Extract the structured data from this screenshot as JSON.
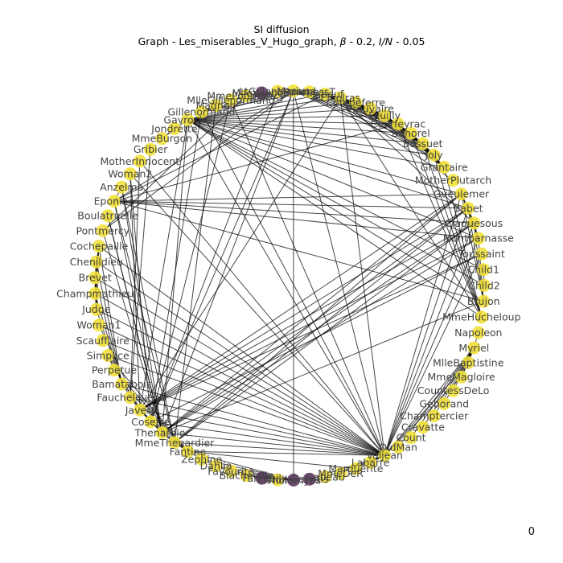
{
  "figure": {
    "title": "SI diffusion",
    "subtitle_prefix": "Graph - Les_miserables_V_Hugo_graph, ",
    "subtitle_beta_symbol": "β",
    "subtitle_beta_value": " - 0.2, ",
    "subtitle_ratio_symbol": "I/N",
    "subtitle_ratio_value": " - 0.05",
    "frame_counter": "0"
  },
  "legend_colors": {
    "susceptible": "#f2e13a",
    "infected": "#5a2e5c",
    "edge": "#000000"
  },
  "nodes": [
    {
      "id": "Napoleon",
      "state": "susceptible"
    },
    {
      "id": "Myriel",
      "state": "susceptible"
    },
    {
      "id": "MlleBaptistine",
      "state": "susceptible"
    },
    {
      "id": "MmeMagloire",
      "state": "susceptible"
    },
    {
      "id": "CountessDeLo",
      "state": "susceptible"
    },
    {
      "id": "Geborand",
      "state": "susceptible"
    },
    {
      "id": "Champtercier",
      "state": "susceptible"
    },
    {
      "id": "Cravatte",
      "state": "susceptible"
    },
    {
      "id": "Count",
      "state": "susceptible"
    },
    {
      "id": "OldMan",
      "state": "susceptible"
    },
    {
      "id": "Valjean",
      "state": "susceptible"
    },
    {
      "id": "Labarre",
      "state": "susceptible"
    },
    {
      "id": "Marguerite",
      "state": "susceptible"
    },
    {
      "id": "MmeDeR",
      "state": "susceptible"
    },
    {
      "id": "Isabeau",
      "state": "susceptible"
    },
    {
      "id": "Gervais",
      "state": "infected"
    },
    {
      "id": "Tholomyes",
      "state": "infected"
    },
    {
      "id": "Listolier",
      "state": "susceptible"
    },
    {
      "id": "Fameuil",
      "state": "infected"
    },
    {
      "id": "Blacheville",
      "state": "susceptible"
    },
    {
      "id": "Favourite",
      "state": "susceptible"
    },
    {
      "id": "Dahlia",
      "state": "susceptible"
    },
    {
      "id": "Zephine",
      "state": "susceptible"
    },
    {
      "id": "Fantine",
      "state": "susceptible"
    },
    {
      "id": "MmeThenardier",
      "state": "susceptible"
    },
    {
      "id": "Thenardier",
      "state": "susceptible"
    },
    {
      "id": "Cosette",
      "state": "susceptible"
    },
    {
      "id": "Javert",
      "state": "susceptible"
    },
    {
      "id": "Fauchelevent",
      "state": "susceptible"
    },
    {
      "id": "Bamatabois",
      "state": "susceptible"
    },
    {
      "id": "Perpetue",
      "state": "susceptible"
    },
    {
      "id": "Simplice",
      "state": "susceptible"
    },
    {
      "id": "Scaufflaire",
      "state": "susceptible"
    },
    {
      "id": "Woman1",
      "state": "susceptible"
    },
    {
      "id": "Judge",
      "state": "susceptible"
    },
    {
      "id": "Champmathieu",
      "state": "susceptible"
    },
    {
      "id": "Brevet",
      "state": "susceptible"
    },
    {
      "id": "Chenildieu",
      "state": "susceptible"
    },
    {
      "id": "Cochepaille",
      "state": "susceptible"
    },
    {
      "id": "Pontmercy",
      "state": "susceptible"
    },
    {
      "id": "Boulatruelle",
      "state": "susceptible"
    },
    {
      "id": "Eponine",
      "state": "susceptible"
    },
    {
      "id": "Anzelma",
      "state": "susceptible"
    },
    {
      "id": "Woman2",
      "state": "susceptible"
    },
    {
      "id": "MotherInnocent",
      "state": "susceptible"
    },
    {
      "id": "Gribier",
      "state": "susceptible"
    },
    {
      "id": "MmeBurgon",
      "state": "susceptible"
    },
    {
      "id": "Jondrette",
      "state": "susceptible"
    },
    {
      "id": "Gavroche",
      "state": "susceptible"
    },
    {
      "id": "Gillenormand",
      "state": "susceptible"
    },
    {
      "id": "Magnon",
      "state": "susceptible"
    },
    {
      "id": "MlleGillenormand",
      "state": "susceptible"
    },
    {
      "id": "MmePontmercy",
      "state": "susceptible"
    },
    {
      "id": "MlleVaubois",
      "state": "infected"
    },
    {
      "id": "LtGillenormand",
      "state": "susceptible"
    },
    {
      "id": "Marius",
      "state": "susceptible"
    },
    {
      "id": "BaronessT",
      "state": "susceptible"
    },
    {
      "id": "Mabeuf",
      "state": "susceptible"
    },
    {
      "id": "Enjolras",
      "state": "susceptible"
    },
    {
      "id": "Combeferre",
      "state": "susceptible"
    },
    {
      "id": "Prouvaire",
      "state": "susceptible"
    },
    {
      "id": "Feuilly",
      "state": "susceptible"
    },
    {
      "id": "Courfeyrac",
      "state": "susceptible"
    },
    {
      "id": "Bahorel",
      "state": "susceptible"
    },
    {
      "id": "Bossuet",
      "state": "susceptible"
    },
    {
      "id": "Joly",
      "state": "susceptible"
    },
    {
      "id": "Grantaire",
      "state": "susceptible"
    },
    {
      "id": "MotherPlutarch",
      "state": "susceptible"
    },
    {
      "id": "Gueulemer",
      "state": "susceptible"
    },
    {
      "id": "Babet",
      "state": "susceptible"
    },
    {
      "id": "Claquesous",
      "state": "susceptible"
    },
    {
      "id": "Montparnasse",
      "state": "susceptible"
    },
    {
      "id": "Toussaint",
      "state": "susceptible"
    },
    {
      "id": "Child1",
      "state": "susceptible"
    },
    {
      "id": "Child2",
      "state": "susceptible"
    },
    {
      "id": "Brujon",
      "state": "susceptible"
    },
    {
      "id": "MmeHucheloup",
      "state": "susceptible"
    }
  ],
  "edges": [
    [
      "Napoleon",
      "Myriel"
    ],
    [
      "Myriel",
      "MlleBaptistine"
    ],
    [
      "Myriel",
      "MmeMagloire"
    ],
    [
      "Myriel",
      "CountessDeLo"
    ],
    [
      "Myriel",
      "Geborand"
    ],
    [
      "Myriel",
      "Champtercier"
    ],
    [
      "Myriel",
      "Cravatte"
    ],
    [
      "Myriel",
      "Count"
    ],
    [
      "Myriel",
      "OldMan"
    ],
    [
      "Myriel",
      "Valjean"
    ],
    [
      "MlleBaptistine",
      "MmeMagloire"
    ],
    [
      "MlleBaptistine",
      "Valjean"
    ],
    [
      "MmeMagloire",
      "Valjean"
    ],
    [
      "Labarre",
      "Valjean"
    ],
    [
      "Valjean",
      "Marguerite"
    ],
    [
      "Valjean",
      "MmeDeR"
    ],
    [
      "Valjean",
      "Isabeau"
    ],
    [
      "Valjean",
      "Gervais"
    ],
    [
      "Valjean",
      "Fantine"
    ],
    [
      "Valjean",
      "MmeThenardier"
    ],
    [
      "Valjean",
      "Thenardier"
    ],
    [
      "Valjean",
      "Cosette"
    ],
    [
      "Valjean",
      "Javert"
    ],
    [
      "Valjean",
      "Fauchelevent"
    ],
    [
      "Valjean",
      "Bamatabois"
    ],
    [
      "Valjean",
      "Simplice"
    ],
    [
      "Valjean",
      "Scaufflaire"
    ],
    [
      "Valjean",
      "Woman1"
    ],
    [
      "Valjean",
      "Judge"
    ],
    [
      "Valjean",
      "Champmathieu"
    ],
    [
      "Valjean",
      "Brevet"
    ],
    [
      "Valjean",
      "Chenildieu"
    ],
    [
      "Valjean",
      "Cochepaille"
    ],
    [
      "Valjean",
      "Woman2"
    ],
    [
      "Valjean",
      "MotherInnocent"
    ],
    [
      "Valjean",
      "Gavroche"
    ],
    [
      "Valjean",
      "Gillenormand"
    ],
    [
      "Valjean",
      "MlleGillenormand"
    ],
    [
      "Valjean",
      "Marius"
    ],
    [
      "Valjean",
      "Enjolras"
    ],
    [
      "Valjean",
      "Gueulemer"
    ],
    [
      "Valjean",
      "Babet"
    ],
    [
      "Valjean",
      "Claquesous"
    ],
    [
      "Valjean",
      "Montparnasse"
    ],
    [
      "Valjean",
      "Toussaint"
    ],
    [
      "Valjean",
      "Labarre"
    ],
    [
      "Marguerite",
      "Fantine"
    ],
    [
      "Tholomyes",
      "Listolier"
    ],
    [
      "Tholomyes",
      "Fameuil"
    ],
    [
      "Tholomyes",
      "Blacheville"
    ],
    [
      "Tholomyes",
      "Favourite"
    ],
    [
      "Tholomyes",
      "Dahlia"
    ],
    [
      "Tholomyes",
      "Zephine"
    ],
    [
      "Tholomyes",
      "Fantine"
    ],
    [
      "Tholomyes",
      "Marius"
    ],
    [
      "Listolier",
      "Fameuil"
    ],
    [
      "Listolier",
      "Blacheville"
    ],
    [
      "Fameuil",
      "Blacheville"
    ],
    [
      "Favourite",
      "Dahlia"
    ],
    [
      "Dahlia",
      "Zephine"
    ],
    [
      "Zephine",
      "Fantine"
    ],
    [
      "Fantine",
      "MmeThenardier"
    ],
    [
      "Fantine",
      "Thenardier"
    ],
    [
      "Fantine",
      "Javert"
    ],
    [
      "Fantine",
      "Bamatabois"
    ],
    [
      "Fantine",
      "Perpetue"
    ],
    [
      "Fantine",
      "Simplice"
    ],
    [
      "MmeThenardier",
      "Thenardier"
    ],
    [
      "MmeThenardier",
      "Cosette"
    ],
    [
      "MmeThenardier",
      "Javert"
    ],
    [
      "MmeThenardier",
      "Eponine"
    ],
    [
      "MmeThenardier",
      "Anzelma"
    ],
    [
      "MmeThenardier",
      "Babet"
    ],
    [
      "MmeThenardier",
      "Claquesous"
    ],
    [
      "MmeThenardier",
      "Gueulemer"
    ],
    [
      "MmeThenardier",
      "Magnon"
    ],
    [
      "Thenardier",
      "Cosette"
    ],
    [
      "Thenardier",
      "Javert"
    ],
    [
      "Thenardier",
      "Pontmercy"
    ],
    [
      "Thenardier",
      "Boulatruelle"
    ],
    [
      "Thenardier",
      "Eponine"
    ],
    [
      "Thenardier",
      "Anzelma"
    ],
    [
      "Thenardier",
      "Gueulemer"
    ],
    [
      "Thenardier",
      "Babet"
    ],
    [
      "Thenardier",
      "Claquesous"
    ],
    [
      "Thenardier",
      "Montparnasse"
    ],
    [
      "Thenardier",
      "Brujon"
    ],
    [
      "Thenardier",
      "Marius"
    ],
    [
      "Thenardier",
      "Gavroche"
    ],
    [
      "Cosette",
      "Javert"
    ],
    [
      "Cosette",
      "Gillenormand"
    ],
    [
      "Cosette",
      "MlleGillenormand"
    ],
    [
      "Cosette",
      "LtGillenormand"
    ],
    [
      "Cosette",
      "Marius"
    ],
    [
      "Cosette",
      "Woman2"
    ],
    [
      "Cosette",
      "Toussaint"
    ],
    [
      "Javert",
      "Fauchelevent"
    ],
    [
      "Javert",
      "Bamatabois"
    ],
    [
      "Javert",
      "Simplice"
    ],
    [
      "Javert",
      "Woman1"
    ],
    [
      "Javert",
      "Woman2"
    ],
    [
      "Javert",
      "Toussaint"
    ],
    [
      "Javert",
      "Gavroche"
    ],
    [
      "Javert",
      "Enjolras"
    ],
    [
      "Javert",
      "Gueulemer"
    ],
    [
      "Javert",
      "Babet"
    ],
    [
      "Javert",
      "Claquesous"
    ],
    [
      "Javert",
      "Montparnasse"
    ],
    [
      "Fauchelevent",
      "MotherInnocent"
    ],
    [
      "Fauchelevent",
      "Gribier"
    ],
    [
      "Bamatabois",
      "Judge"
    ],
    [
      "Bamatabois",
      "Champmathieu"
    ],
    [
      "Bamatabois",
      "Brevet"
    ],
    [
      "Bamatabois",
      "Chenildieu"
    ],
    [
      "Bamatabois",
      "Cochepaille"
    ],
    [
      "Perpetue",
      "Simplice"
    ],
    [
      "Judge",
      "Champmathieu"
    ],
    [
      "Judge",
      "Brevet"
    ],
    [
      "Judge",
      "Chenildieu"
    ],
    [
      "Judge",
      "Cochepaille"
    ],
    [
      "Champmathieu",
      "Brevet"
    ],
    [
      "Champmathieu",
      "Chenildieu"
    ],
    [
      "Champmathieu",
      "Cochepaille"
    ],
    [
      "Brevet",
      "Chenildieu"
    ],
    [
      "Brevet",
      "Cochepaille"
    ],
    [
      "Chenildieu",
      "Cochepaille"
    ],
    [
      "Pontmercy",
      "Marius"
    ],
    [
      "Pontmercy",
      "MmePontmercy"
    ],
    [
      "Boulatruelle",
      "Thenardier"
    ],
    [
      "Eponine",
      "Anzelma"
    ],
    [
      "Eponine",
      "Marius"
    ],
    [
      "Eponine",
      "Mabeuf"
    ],
    [
      "Eponine",
      "Courfeyrac"
    ],
    [
      "Eponine",
      "Gueulemer"
    ],
    [
      "Eponine",
      "Babet"
    ],
    [
      "Eponine",
      "Claquesous"
    ],
    [
      "Eponine",
      "Montparnasse"
    ],
    [
      "Eponine",
      "Brujon"
    ],
    [
      "MmeBurgon",
      "Jondrette"
    ],
    [
      "MmeBurgon",
      "Gavroche"
    ],
    [
      "Gavroche",
      "Marius"
    ],
    [
      "Gavroche",
      "Mabeuf"
    ],
    [
      "Gavroche",
      "Enjolras"
    ],
    [
      "Gavroche",
      "Combeferre"
    ],
    [
      "Gavroche",
      "Prouvaire"
    ],
    [
      "Gavroche",
      "Feuilly"
    ],
    [
      "Gavroche",
      "Courfeyrac"
    ],
    [
      "Gavroche",
      "Bahorel"
    ],
    [
      "Gavroche",
      "Bossuet"
    ],
    [
      "Gavroche",
      "Joly"
    ],
    [
      "Gavroche",
      "Grantaire"
    ],
    [
      "Gavroche",
      "Gueulemer"
    ],
    [
      "Gavroche",
      "Babet"
    ],
    [
      "Gavroche",
      "Montparnasse"
    ],
    [
      "Gavroche",
      "Child1"
    ],
    [
      "Gavroche",
      "Child2"
    ],
    [
      "Gavroche",
      "Brujon"
    ],
    [
      "Gavroche",
      "MmeHucheloup"
    ],
    [
      "Gillenormand",
      "MlleGillenormand"
    ],
    [
      "Gillenormand",
      "Magnon"
    ],
    [
      "Gillenormand",
      "LtGillenormand"
    ],
    [
      "Gillenormand",
      "Marius"
    ],
    [
      "Gillenormand",
      "BaronessT"
    ],
    [
      "MlleGillenormand",
      "MmePontmercy"
    ],
    [
      "MlleGillenormand",
      "MlleVaubois"
    ],
    [
      "MlleGillenormand",
      "LtGillenormand"
    ],
    [
      "MlleGillenormand",
      "Marius"
    ],
    [
      "LtGillenormand",
      "Marius"
    ],
    [
      "Marius",
      "BaronessT"
    ],
    [
      "Marius",
      "Mabeuf"
    ],
    [
      "Marius",
      "Enjolras"
    ],
    [
      "Marius",
      "Combeferre"
    ],
    [
      "Marius",
      "Feuilly"
    ],
    [
      "Marius",
      "Courfeyrac"
    ],
    [
      "Marius",
      "Bahorel"
    ],
    [
      "Marius",
      "Bossuet"
    ],
    [
      "Marius",
      "Joly"
    ],
    [
      "Mabeuf",
      "Enjolras"
    ],
    [
      "Mabeuf",
      "Combeferre"
    ],
    [
      "Mabeuf",
      "Feuilly"
    ],
    [
      "Mabeuf",
      "Courfeyrac"
    ],
    [
      "Mabeuf",
      "Bossuet"
    ],
    [
      "Mabeuf",
      "Joly"
    ],
    [
      "Mabeuf",
      "MotherPlutarch"
    ],
    [
      "Enjolras",
      "Combeferre"
    ],
    [
      "Enjolras",
      "Prouvaire"
    ],
    [
      "Enjolras",
      "Feuilly"
    ],
    [
      "Enjolras",
      "Courfeyrac"
    ],
    [
      "Enjolras",
      "Bahorel"
    ],
    [
      "Enjolras",
      "Bossuet"
    ],
    [
      "Enjolras",
      "Joly"
    ],
    [
      "Enjolras",
      "Grantaire"
    ],
    [
      "Enjolras",
      "Claquesous"
    ],
    [
      "Enjolras",
      "MmeHucheloup"
    ],
    [
      "Combeferre",
      "Prouvaire"
    ],
    [
      "Combeferre",
      "Feuilly"
    ],
    [
      "Combeferre",
      "Courfeyrac"
    ],
    [
      "Combeferre",
      "Bahorel"
    ],
    [
      "Combeferre",
      "Bossuet"
    ],
    [
      "Combeferre",
      "Joly"
    ],
    [
      "Combeferre",
      "Grantaire"
    ],
    [
      "Prouvaire",
      "Feuilly"
    ],
    [
      "Prouvaire",
      "Courfeyrac"
    ],
    [
      "Feuilly",
      "Courfeyrac"
    ],
    [
      "Feuilly",
      "Bahorel"
    ],
    [
      "Feuilly",
      "Bossuet"
    ],
    [
      "Feuilly",
      "Joly"
    ],
    [
      "Feuilly",
      "Grantaire"
    ],
    [
      "Courfeyrac",
      "Bahorel"
    ],
    [
      "Courfeyrac",
      "Bossuet"
    ],
    [
      "Courfeyrac",
      "Joly"
    ],
    [
      "Courfeyrac",
      "Grantaire"
    ],
    [
      "Courfeyrac",
      "MmeHucheloup"
    ],
    [
      "Bahorel",
      "Bossuet"
    ],
    [
      "Bahorel",
      "Joly"
    ],
    [
      "Bahorel",
      "Grantaire"
    ],
    [
      "Bahorel",
      "MmeHucheloup"
    ],
    [
      "Bossuet",
      "Joly"
    ],
    [
      "Bossuet",
      "Grantaire"
    ],
    [
      "Bossuet",
      "MmeHucheloup"
    ],
    [
      "Joly",
      "Grantaire"
    ],
    [
      "Joly",
      "MmeHucheloup"
    ],
    [
      "Grantaire",
      "MmeHucheloup"
    ],
    [
      "Gueulemer",
      "Babet"
    ],
    [
      "Gueulemer",
      "Claquesous"
    ],
    [
      "Gueulemer",
      "Montparnasse"
    ],
    [
      "Gueulemer",
      "Brujon"
    ],
    [
      "Babet",
      "Claquesous"
    ],
    [
      "Babet",
      "Montparnasse"
    ],
    [
      "Babet",
      "Brujon"
    ],
    [
      "Claquesous",
      "Montparnasse"
    ],
    [
      "Claquesous",
      "Brujon"
    ],
    [
      "Montparnasse",
      "Brujon"
    ],
    [
      "Child1",
      "Child2"
    ]
  ]
}
